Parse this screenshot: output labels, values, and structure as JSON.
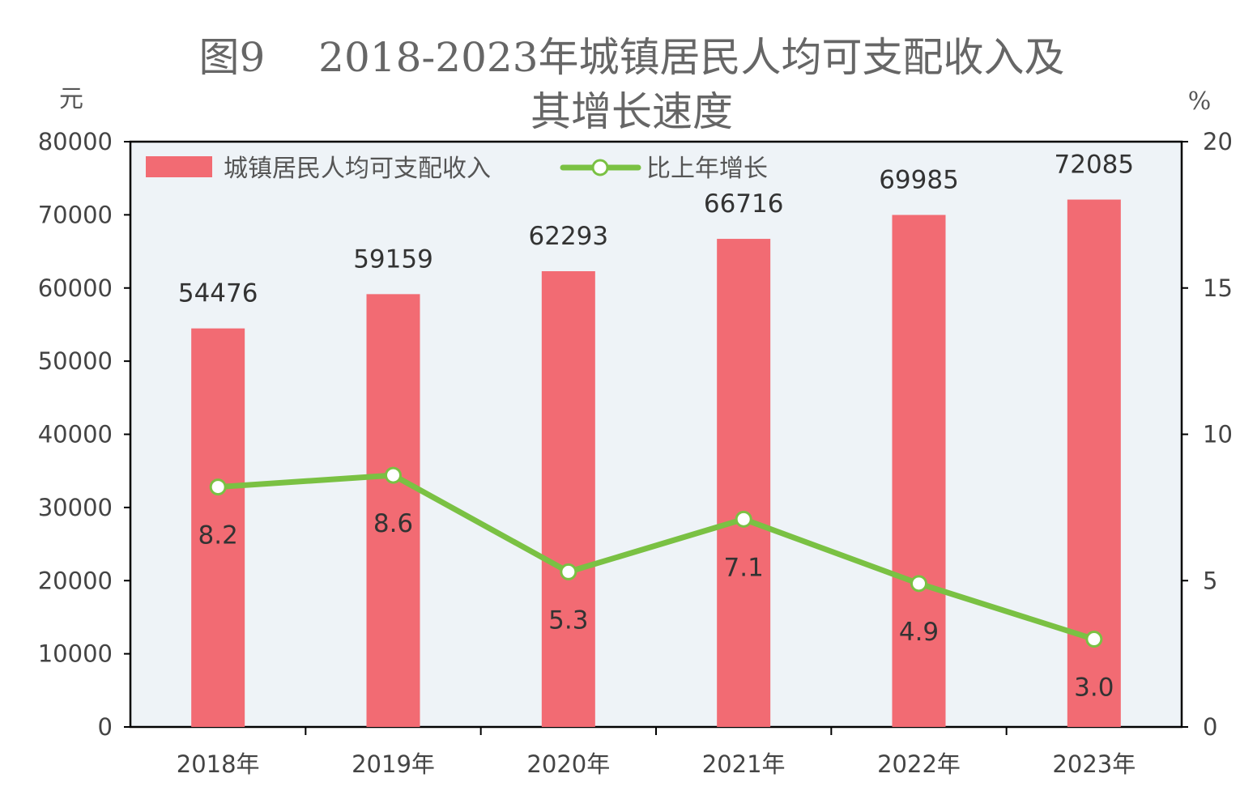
{
  "chart_data": {
    "type": "bar+line",
    "title_line1": "图9　 2018-2023年城镇居民人均可支配收入及",
    "title_line2": "其增长速度",
    "ylabel_left": "元",
    "ylabel_right": "%",
    "categories": [
      "2018年",
      "2019年",
      "2020年",
      "2021年",
      "2022年",
      "2023年"
    ],
    "series": [
      {
        "name": "城镇居民人均可支配收入",
        "type": "bar",
        "axis": "left",
        "values": [
          54476,
          59159,
          62293,
          66716,
          69985,
          72085
        ]
      },
      {
        "name": "比上年增长",
        "type": "line",
        "axis": "right",
        "values": [
          8.2,
          8.6,
          5.3,
          7.1,
          4.9,
          3.0
        ]
      }
    ],
    "ylim_left": [
      0,
      80000
    ],
    "yticks_left": [
      "0",
      "10000",
      "20000",
      "30000",
      "40000",
      "50000",
      "60000",
      "70000",
      "80000"
    ],
    "ylim_right": [
      0,
      20
    ],
    "yticks_right": [
      "0",
      "5",
      "10",
      "15",
      "20"
    ],
    "line_labels": [
      "8.2",
      "8.6",
      "5.3",
      "7.1",
      "4.9",
      "3.0"
    ],
    "bar_labels": [
      "54476",
      "59159",
      "62293",
      "66716",
      "69985",
      "72085"
    ],
    "legend_position": "top-left",
    "grid": false,
    "colors": {
      "bar": "#f26b73",
      "line": "#7ac143",
      "marker_fill": "#ffffff",
      "plot_bg": "#eef3f7"
    }
  }
}
